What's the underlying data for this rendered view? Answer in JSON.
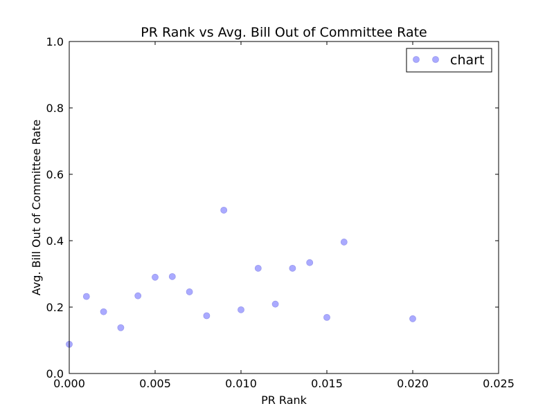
{
  "chart_data": {
    "type": "scatter",
    "title": "PR Rank vs Avg. Bill Out of Committee Rate",
    "xlabel": "PR Rank",
    "ylabel": "Avg. Bill Out of Committee Rate",
    "xlim": [
      0,
      0.025
    ],
    "ylim": [
      0,
      1.0
    ],
    "x_ticks": [
      "0.000",
      "0.005",
      "0.010",
      "0.015",
      "0.020",
      "0.025"
    ],
    "y_ticks": [
      "0.0",
      "0.2",
      "0.4",
      "0.6",
      "0.8",
      "1.0"
    ],
    "legend_position": "top-right",
    "grid": false,
    "series": [
      {
        "name": "chart",
        "color": "#aaaaff",
        "points": [
          {
            "x": 0.0,
            "y": 0.088
          },
          {
            "x": 0.001,
            "y": 0.232
          },
          {
            "x": 0.002,
            "y": 0.186
          },
          {
            "x": 0.003,
            "y": 0.138
          },
          {
            "x": 0.004,
            "y": 0.234
          },
          {
            "x": 0.005,
            "y": 0.29
          },
          {
            "x": 0.006,
            "y": 0.292
          },
          {
            "x": 0.007,
            "y": 0.246
          },
          {
            "x": 0.008,
            "y": 0.174
          },
          {
            "x": 0.009,
            "y": 0.492
          },
          {
            "x": 0.01,
            "y": 0.192
          },
          {
            "x": 0.011,
            "y": 0.317
          },
          {
            "x": 0.012,
            "y": 0.209
          },
          {
            "x": 0.013,
            "y": 0.317
          },
          {
            "x": 0.014,
            "y": 0.334
          },
          {
            "x": 0.015,
            "y": 0.169
          },
          {
            "x": 0.016,
            "y": 0.396
          },
          {
            "x": 0.02,
            "y": 0.165
          }
        ]
      }
    ]
  }
}
